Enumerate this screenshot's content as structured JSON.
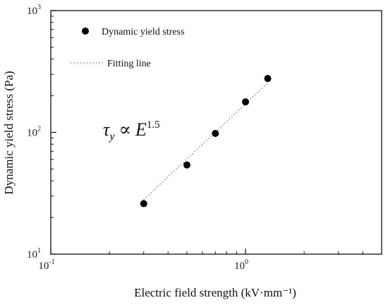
{
  "chart_data": {
    "type": "scatter",
    "xlabel": "Electric field strength (kV·mm⁻¹)",
    "ylabel": "Dynamic yield stress (Pa)",
    "x_scale": "log",
    "y_scale": "log",
    "xlim": [
      0.1,
      5
    ],
    "ylim": [
      10,
      1000
    ],
    "x_ticks": [
      {
        "value": 0.1,
        "base": "10",
        "exp": "-1"
      },
      {
        "value": 1,
        "base": "10",
        "exp": "0"
      }
    ],
    "y_ticks": [
      {
        "value": 10,
        "base": "10",
        "exp": "1"
      },
      {
        "value": 100,
        "base": "10",
        "exp": "2"
      },
      {
        "value": 1000,
        "base": "10",
        "exp": "3"
      }
    ],
    "grid": false,
    "legend_position": "top-left",
    "series": [
      {
        "name": "Dynamic yield stress",
        "kind": "points",
        "color": "#000000",
        "x": [
          0.3,
          0.5,
          0.7,
          1.0,
          1.3
        ],
        "y": [
          26,
          54,
          98,
          178,
          277
        ]
      },
      {
        "name": "Fitting line",
        "kind": "dotted-line",
        "color": "#777777",
        "x": [
          0.3,
          1.3
        ],
        "y": [
          28,
          255
        ]
      }
    ],
    "annotation": {
      "symbol": "τ",
      "subscript": "y",
      "relation": "∝",
      "variable": "E",
      "exponent": "1.5"
    }
  }
}
